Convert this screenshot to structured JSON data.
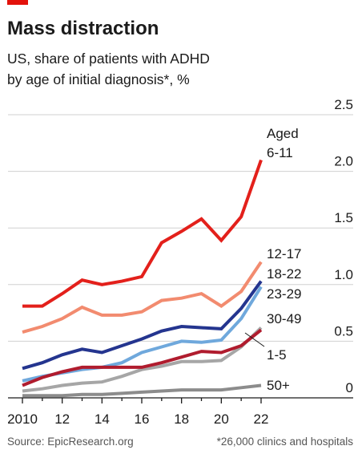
{
  "chart_data": {
    "type": "line",
    "title": "Mass distraction",
    "subtitle_lines": [
      "US, share of patients with ADHD",
      "by age of initial diagnosis*, %"
    ],
    "x": [
      2010,
      2011,
      2012,
      2013,
      2014,
      2015,
      2016,
      2017,
      2018,
      2019,
      2020,
      2021,
      2022
    ],
    "x_tick_values": [
      2010,
      2012,
      2014,
      2016,
      2018,
      2020,
      2022
    ],
    "x_tick_labels": [
      "2010",
      "12",
      "14",
      "16",
      "18",
      "20",
      "22"
    ],
    "ylim": [
      0,
      2.5
    ],
    "y_ticks": [
      0,
      0.5,
      1.0,
      1.5,
      2.0,
      2.5
    ],
    "y_tick_labels": [
      "0",
      "0.5",
      "1.0",
      "1.5",
      "2.0",
      "2.5"
    ],
    "y_axis_side": "right",
    "grid": true,
    "series": [
      {
        "label_lines": [
          "Aged",
          "6-11"
        ],
        "color": "#e3201b",
        "values": [
          0.81,
          0.81,
          0.92,
          1.04,
          1.0,
          1.03,
          1.07,
          1.37,
          1.47,
          1.58,
          1.39,
          1.6,
          2.1
        ]
      },
      {
        "label_lines": [
          "12-17"
        ],
        "color": "#f28b6f",
        "values": [
          0.58,
          0.63,
          0.7,
          0.8,
          0.73,
          0.73,
          0.76,
          0.86,
          0.88,
          0.92,
          0.81,
          0.94,
          1.2
        ]
      },
      {
        "label_lines": [
          "18-22"
        ],
        "color": "#24358f",
        "values": [
          0.26,
          0.31,
          0.38,
          0.43,
          0.4,
          0.46,
          0.52,
          0.59,
          0.63,
          0.62,
          0.61,
          0.79,
          1.03
        ]
      },
      {
        "label_lines": [
          "23-29"
        ],
        "color": "#6fa8dc",
        "values": [
          0.15,
          0.19,
          0.22,
          0.25,
          0.27,
          0.31,
          0.4,
          0.45,
          0.5,
          0.49,
          0.51,
          0.7,
          0.98
        ]
      },
      {
        "label_lines": [
          "30-49"
        ],
        "color": "#a6a6a6",
        "values": [
          0.06,
          0.08,
          0.11,
          0.13,
          0.14,
          0.19,
          0.25,
          0.28,
          0.32,
          0.32,
          0.33,
          0.45,
          0.62
        ]
      },
      {
        "label_lines": [
          "1-5"
        ],
        "color": "#b01c2e",
        "values": [
          0.11,
          0.18,
          0.23,
          0.27,
          0.27,
          0.27,
          0.27,
          0.31,
          0.36,
          0.41,
          0.4,
          0.46,
          0.6
        ]
      },
      {
        "label_lines": [
          "50+"
        ],
        "color": "#8c8c8c",
        "values": [
          0.02,
          0.02,
          0.02,
          0.03,
          0.03,
          0.04,
          0.05,
          0.06,
          0.07,
          0.07,
          0.07,
          0.09,
          0.11
        ]
      }
    ],
    "source": "Source: EpicResearch.org",
    "footnote": "*26,000 clinics and hospitals"
  }
}
